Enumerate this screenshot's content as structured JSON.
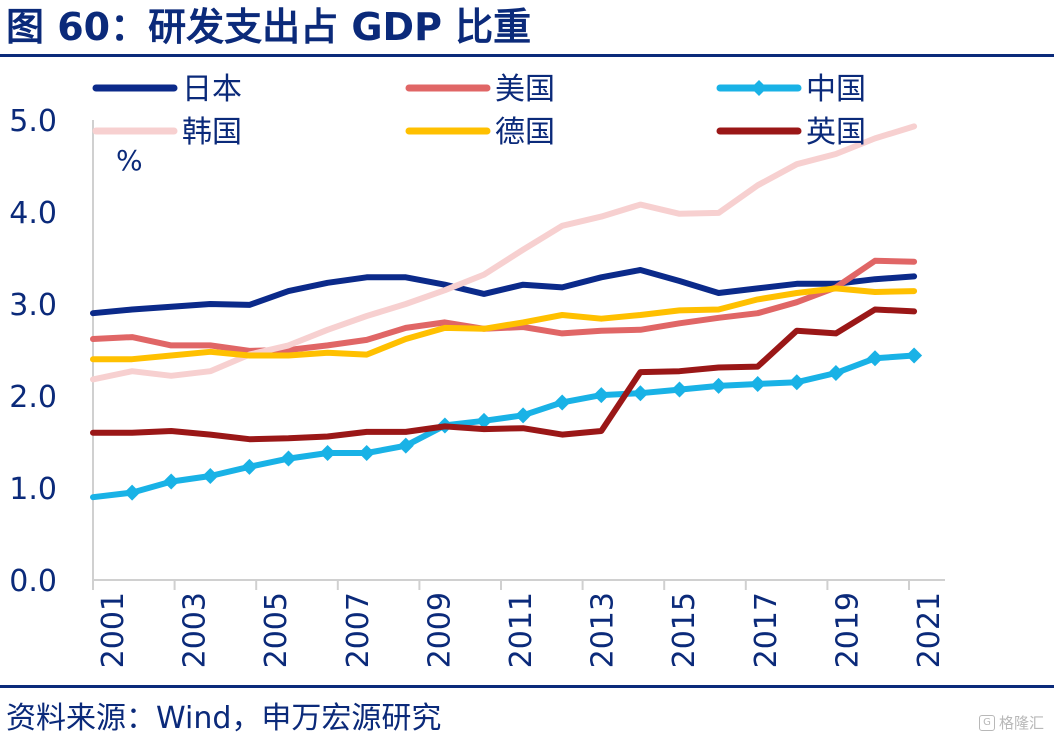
{
  "header": {
    "title": "图 60：研发支出占 GDP 比重"
  },
  "footer": {
    "source": "资料来源：Wind，申万宏源研究",
    "watermark": "格隆汇"
  },
  "chart_data": {
    "type": "line",
    "title": "图 60：研发支出占 GDP 比重",
    "ylabel": "%",
    "ylim": [
      0,
      5
    ],
    "yticks": [
      "0.0",
      "1.0",
      "2.0",
      "3.0",
      "4.0",
      "5.0"
    ],
    "x": [
      2000,
      2001,
      2002,
      2003,
      2004,
      2005,
      2006,
      2007,
      2008,
      2009,
      2010,
      2011,
      2012,
      2013,
      2014,
      2015,
      2016,
      2017,
      2018,
      2019,
      2020,
      2021
    ],
    "xticks": [
      "2001",
      "2003",
      "2005",
      "2007",
      "2009",
      "2011",
      "2013",
      "2015",
      "2017",
      "2019",
      "2021"
    ],
    "legend_position": "top",
    "series": [
      {
        "name": "日本",
        "color": "#0b2a8a",
        "marker": "none",
        "values": [
          2.9,
          2.94,
          2.97,
          3.0,
          2.99,
          3.14,
          3.23,
          3.29,
          3.29,
          3.21,
          3.11,
          3.21,
          3.18,
          3.29,
          3.37,
          3.25,
          3.12,
          3.17,
          3.22,
          3.22,
          3.27,
          3.3
        ]
      },
      {
        "name": "美国",
        "color": "#e06666",
        "marker": "none",
        "values": [
          2.62,
          2.64,
          2.55,
          2.55,
          2.49,
          2.5,
          2.55,
          2.61,
          2.74,
          2.8,
          2.73,
          2.75,
          2.68,
          2.71,
          2.72,
          2.79,
          2.85,
          2.9,
          3.02,
          3.18,
          3.47,
          3.46
        ]
      },
      {
        "name": "中国",
        "color": "#19b2e6",
        "marker": "diamond",
        "values": [
          0.9,
          0.95,
          1.07,
          1.13,
          1.23,
          1.32,
          1.38,
          1.38,
          1.46,
          1.68,
          1.73,
          1.79,
          1.93,
          2.01,
          2.03,
          2.07,
          2.11,
          2.13,
          2.15,
          2.25,
          2.41,
          2.44
        ]
      },
      {
        "name": "韩国",
        "color": "#f7d0d0",
        "marker": "none",
        "values": [
          2.18,
          2.27,
          2.22,
          2.27,
          2.45,
          2.55,
          2.72,
          2.87,
          3.0,
          3.15,
          3.32,
          3.59,
          3.85,
          3.95,
          4.08,
          3.98,
          3.99,
          4.29,
          4.52,
          4.63,
          4.8,
          4.93
        ]
      },
      {
        "name": "德国",
        "color": "#ffc000",
        "marker": "none",
        "values": [
          2.4,
          2.4,
          2.44,
          2.48,
          2.44,
          2.44,
          2.47,
          2.45,
          2.62,
          2.74,
          2.73,
          2.8,
          2.88,
          2.84,
          2.88,
          2.93,
          2.94,
          3.05,
          3.12,
          3.17,
          3.13,
          3.14
        ]
      },
      {
        "name": "英国",
        "color": "#9a1717",
        "marker": "none",
        "values": [
          1.6,
          1.6,
          1.62,
          1.58,
          1.53,
          1.54,
          1.56,
          1.61,
          1.61,
          1.67,
          1.64,
          1.65,
          1.58,
          1.62,
          2.26,
          2.27,
          2.31,
          2.32,
          2.71,
          2.68,
          2.94,
          2.92
        ]
      }
    ]
  }
}
